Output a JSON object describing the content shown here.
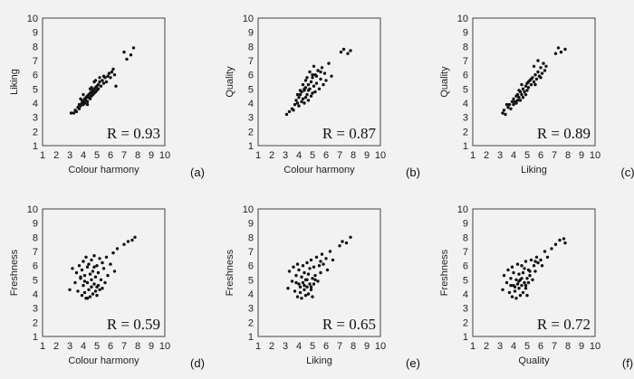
{
  "chart_data": [
    {
      "type": "scatter",
      "panel": "(a)",
      "xlabel": "Colour harmony",
      "ylabel": "Liking",
      "xlim": [
        1,
        10
      ],
      "ylim": [
        1,
        10
      ],
      "xticks": [
        "1",
        "2",
        "3",
        "4",
        "5",
        "6",
        "7",
        "8",
        "9",
        "10"
      ],
      "yticks": [
        "1",
        "2",
        "3",
        "4",
        "5",
        "6",
        "7",
        "8",
        "9",
        "10"
      ],
      "annotation": "R = 0.93",
      "points": [
        [
          3.1,
          3.3
        ],
        [
          3.3,
          3.3
        ],
        [
          3.4,
          3.5
        ],
        [
          3.5,
          3.4
        ],
        [
          3.6,
          3.7
        ],
        [
          3.7,
          3.6
        ],
        [
          3.7,
          3.9
        ],
        [
          3.8,
          3.8
        ],
        [
          3.9,
          4.0
        ],
        [
          3.9,
          4.2
        ],
        [
          4.0,
          3.9
        ],
        [
          4.0,
          4.1
        ],
        [
          4.1,
          4.3
        ],
        [
          4.1,
          4.0
        ],
        [
          4.2,
          4.4
        ],
        [
          4.2,
          4.2
        ],
        [
          4.3,
          4.5
        ],
        [
          4.3,
          4.1
        ],
        [
          4.4,
          4.6
        ],
        [
          4.4,
          4.4
        ],
        [
          4.5,
          4.7
        ],
        [
          4.5,
          4.3
        ],
        [
          4.6,
          4.8
        ],
        [
          4.6,
          4.5
        ],
        [
          4.7,
          4.9
        ],
        [
          4.7,
          4.6
        ],
        [
          4.8,
          5.0
        ],
        [
          4.8,
          4.7
        ],
        [
          4.9,
          5.1
        ],
        [
          4.9,
          4.8
        ],
        [
          5.0,
          5.2
        ],
        [
          5.0,
          4.9
        ],
        [
          5.1,
          5.3
        ],
        [
          5.1,
          5.0
        ],
        [
          5.2,
          5.5
        ],
        [
          5.3,
          5.2
        ],
        [
          5.4,
          5.6
        ],
        [
          5.5,
          5.4
        ],
        [
          5.6,
          5.8
        ],
        [
          5.7,
          5.5
        ],
        [
          5.8,
          5.9
        ],
        [
          5.9,
          6.1
        ],
        [
          6.0,
          5.8
        ],
        [
          6.1,
          6.2
        ],
        [
          6.2,
          6.4
        ],
        [
          6.3,
          6.0
        ],
        [
          6.4,
          5.2
        ],
        [
          7.0,
          7.6
        ],
        [
          7.2,
          7.1
        ],
        [
          7.5,
          7.4
        ],
        [
          7.7,
          7.9
        ],
        [
          4.0,
          4.6
        ],
        [
          4.5,
          5.0
        ],
        [
          4.8,
          5.5
        ],
        [
          5.2,
          5.8
        ],
        [
          4.3,
          3.9
        ],
        [
          3.8,
          4.3
        ],
        [
          4.6,
          5.1
        ],
        [
          5.5,
          5.9
        ],
        [
          4.9,
          5.6
        ]
      ]
    },
    {
      "type": "scatter",
      "panel": "(b)",
      "xlabel": "Colour harmony",
      "ylabel": "Quality",
      "xlim": [
        1,
        10
      ],
      "ylim": [
        1,
        10
      ],
      "xticks": [
        "1",
        "2",
        "3",
        "4",
        "5",
        "6",
        "7",
        "8",
        "9",
        "10"
      ],
      "yticks": [
        "1",
        "2",
        "3",
        "4",
        "5",
        "6",
        "7",
        "8",
        "9",
        "10"
      ],
      "annotation": "R = 0.87",
      "points": [
        [
          3.1,
          3.2
        ],
        [
          3.3,
          3.4
        ],
        [
          3.5,
          3.6
        ],
        [
          3.6,
          3.5
        ],
        [
          3.7,
          3.9
        ],
        [
          3.8,
          4.2
        ],
        [
          3.9,
          4.0
        ],
        [
          4.0,
          4.4
        ],
        [
          4.0,
          3.8
        ],
        [
          4.1,
          4.6
        ],
        [
          4.2,
          4.1
        ],
        [
          4.2,
          4.8
        ],
        [
          4.3,
          4.3
        ],
        [
          4.4,
          4.9
        ],
        [
          4.4,
          4.0
        ],
        [
          4.5,
          5.1
        ],
        [
          4.5,
          4.4
        ],
        [
          4.6,
          4.6
        ],
        [
          4.7,
          5.3
        ],
        [
          4.7,
          4.2
        ],
        [
          4.8,
          5.0
        ],
        [
          4.9,
          5.5
        ],
        [
          4.9,
          4.5
        ],
        [
          5.0,
          5.8
        ],
        [
          5.0,
          4.7
        ],
        [
          5.1,
          5.2
        ],
        [
          5.2,
          6.0
        ],
        [
          5.2,
          4.8
        ],
        [
          5.3,
          5.4
        ],
        [
          5.4,
          6.3
        ],
        [
          5.5,
          5.0
        ],
        [
          5.6,
          5.7
        ],
        [
          5.7,
          6.5
        ],
        [
          5.8,
          5.3
        ],
        [
          5.9,
          6.1
        ],
        [
          6.0,
          5.6
        ],
        [
          6.2,
          6.8
        ],
        [
          6.4,
          5.9
        ],
        [
          4.8,
          6.2
        ],
        [
          5.1,
          6.6
        ],
        [
          4.6,
          5.8
        ],
        [
          4.3,
          5.3
        ],
        [
          7.1,
          7.6
        ],
        [
          7.3,
          7.8
        ],
        [
          7.6,
          7.5
        ],
        [
          7.8,
          7.7
        ],
        [
          4.1,
          4.9
        ],
        [
          4.5,
          5.6
        ],
        [
          5.0,
          6.0
        ],
        [
          3.9,
          4.6
        ],
        [
          4.7,
          4.9
        ],
        [
          5.3,
          5.9
        ],
        [
          4.4,
          5.0
        ],
        [
          5.6,
          6.2
        ]
      ]
    },
    {
      "type": "scatter",
      "panel": "(c)",
      "xlabel": "Liking",
      "ylabel": "Quality",
      "xlim": [
        1,
        10
      ],
      "ylim": [
        1,
        10
      ],
      "xticks": [
        "1",
        "2",
        "3",
        "4",
        "5",
        "6",
        "7",
        "8",
        "9",
        "10"
      ],
      "yticks": [
        "1",
        "2",
        "3",
        "4",
        "5",
        "6",
        "7",
        "8",
        "9",
        "10"
      ],
      "annotation": "R = 0.89",
      "points": [
        [
          3.2,
          3.3
        ],
        [
          3.3,
          3.5
        ],
        [
          3.4,
          3.2
        ],
        [
          3.6,
          3.7
        ],
        [
          3.7,
          3.9
        ],
        [
          3.8,
          3.6
        ],
        [
          3.9,
          4.1
        ],
        [
          4.0,
          3.9
        ],
        [
          4.0,
          4.3
        ],
        [
          4.1,
          4.1
        ],
        [
          4.2,
          4.5
        ],
        [
          4.3,
          4.2
        ],
        [
          4.3,
          4.6
        ],
        [
          4.4,
          4.4
        ],
        [
          4.5,
          4.8
        ],
        [
          4.5,
          4.2
        ],
        [
          4.6,
          4.6
        ],
        [
          4.7,
          5.0
        ],
        [
          4.7,
          4.4
        ],
        [
          4.8,
          4.8
        ],
        [
          4.9,
          5.2
        ],
        [
          5.0,
          4.9
        ],
        [
          5.0,
          5.4
        ],
        [
          5.1,
          5.1
        ],
        [
          5.2,
          5.6
        ],
        [
          5.3,
          5.3
        ],
        [
          5.4,
          5.8
        ],
        [
          5.5,
          5.5
        ],
        [
          5.6,
          6.0
        ],
        [
          5.7,
          5.7
        ],
        [
          5.8,
          6.2
        ],
        [
          5.9,
          5.9
        ],
        [
          6.0,
          6.5
        ],
        [
          6.1,
          6.1
        ],
        [
          6.2,
          6.8
        ],
        [
          6.3,
          6.3
        ],
        [
          5.5,
          6.6
        ],
        [
          5.8,
          7.0
        ],
        [
          6.0,
          5.8
        ],
        [
          4.6,
          5.3
        ],
        [
          7.1,
          7.5
        ],
        [
          7.3,
          7.9
        ],
        [
          7.5,
          7.6
        ],
        [
          7.8,
          7.8
        ],
        [
          4.2,
          4.0
        ],
        [
          4.9,
          4.6
        ],
        [
          5.3,
          5.7
        ],
        [
          3.5,
          3.9
        ],
        [
          4.4,
          4.9
        ],
        [
          5.1,
          5.5
        ],
        [
          5.6,
          5.3
        ],
        [
          6.4,
          6.6
        ]
      ]
    },
    {
      "type": "scatter",
      "panel": "(d)",
      "xlabel": "Colour harmony",
      "ylabel": "Freshness",
      "xlim": [
        1,
        10
      ],
      "ylim": [
        1,
        10
      ],
      "xticks": [
        "1",
        "2",
        "3",
        "4",
        "5",
        "6",
        "7",
        "8",
        "9",
        "10"
      ],
      "yticks": [
        "1",
        "2",
        "3",
        "4",
        "5",
        "6",
        "7",
        "8",
        "9",
        "10"
      ],
      "annotation": "R = 0.59",
      "points": [
        [
          3.0,
          4.3
        ],
        [
          3.2,
          5.8
        ],
        [
          3.4,
          4.8
        ],
        [
          3.5,
          5.5
        ],
        [
          3.6,
          4.2
        ],
        [
          3.7,
          6.0
        ],
        [
          3.8,
          5.1
        ],
        [
          3.9,
          3.9
        ],
        [
          3.9,
          5.7
        ],
        [
          4.0,
          4.6
        ],
        [
          4.0,
          6.3
        ],
        [
          4.1,
          4.1
        ],
        [
          4.1,
          5.3
        ],
        [
          4.2,
          3.7
        ],
        [
          4.2,
          6.6
        ],
        [
          4.3,
          4.8
        ],
        [
          4.3,
          5.9
        ],
        [
          4.4,
          4.3
        ],
        [
          4.4,
          6.1
        ],
        [
          4.5,
          3.8
        ],
        [
          4.5,
          5.4
        ],
        [
          4.6,
          4.5
        ],
        [
          4.6,
          6.4
        ],
        [
          4.7,
          4.0
        ],
        [
          4.7,
          5.6
        ],
        [
          4.8,
          4.7
        ],
        [
          4.8,
          6.7
        ],
        [
          4.9,
          4.2
        ],
        [
          4.9,
          5.2
        ],
        [
          5.0,
          3.9
        ],
        [
          5.0,
          6.0
        ],
        [
          5.1,
          4.6
        ],
        [
          5.1,
          5.5
        ],
        [
          5.2,
          4.3
        ],
        [
          5.2,
          6.5
        ],
        [
          5.3,
          5.0
        ],
        [
          5.4,
          4.4
        ],
        [
          5.4,
          6.2
        ],
        [
          5.5,
          5.8
        ],
        [
          5.6,
          4.8
        ],
        [
          5.7,
          6.6
        ],
        [
          5.8,
          5.3
        ],
        [
          6.0,
          6.1
        ],
        [
          6.2,
          6.9
        ],
        [
          6.3,
          5.6
        ],
        [
          6.5,
          7.2
        ],
        [
          7.0,
          7.5
        ],
        [
          7.3,
          7.7
        ],
        [
          7.6,
          7.8
        ],
        [
          7.8,
          8.0
        ],
        [
          4.1,
          4.9
        ],
        [
          4.6,
          5.0
        ],
        [
          5.0,
          4.5
        ],
        [
          4.3,
          3.7
        ],
        [
          3.8,
          5.2
        ],
        [
          4.8,
          5.9
        ]
      ]
    },
    {
      "type": "scatter",
      "panel": "(e)",
      "xlabel": "Liking",
      "ylabel": "Freshness",
      "xlim": [
        1,
        10
      ],
      "ylim": [
        1,
        10
      ],
      "xticks": [
        "1",
        "2",
        "3",
        "4",
        "5",
        "6",
        "7",
        "8",
        "9",
        "10"
      ],
      "yticks": [
        "1",
        "2",
        "3",
        "4",
        "5",
        "6",
        "7",
        "8",
        "9",
        "10"
      ],
      "annotation": "R = 0.65",
      "points": [
        [
          3.2,
          4.4
        ],
        [
          3.3,
          5.6
        ],
        [
          3.5,
          4.9
        ],
        [
          3.6,
          5.9
        ],
        [
          3.7,
          4.2
        ],
        [
          3.8,
          5.3
        ],
        [
          3.9,
          3.8
        ],
        [
          3.9,
          6.1
        ],
        [
          4.0,
          4.7
        ],
        [
          4.0,
          5.7
        ],
        [
          4.1,
          4.1
        ],
        [
          4.2,
          5.2
        ],
        [
          4.2,
          3.7
        ],
        [
          4.3,
          4.8
        ],
        [
          4.3,
          6.0
        ],
        [
          4.4,
          4.3
        ],
        [
          4.4,
          5.5
        ],
        [
          4.5,
          3.9
        ],
        [
          4.5,
          5.0
        ],
        [
          4.6,
          4.5
        ],
        [
          4.6,
          6.2
        ],
        [
          4.7,
          4.0
        ],
        [
          4.7,
          5.4
        ],
        [
          4.8,
          4.7
        ],
        [
          4.8,
          5.8
        ],
        [
          4.9,
          4.3
        ],
        [
          4.9,
          6.4
        ],
        [
          5.0,
          5.1
        ],
        [
          5.0,
          3.8
        ],
        [
          5.1,
          4.7
        ],
        [
          5.1,
          5.9
        ],
        [
          5.2,
          5.3
        ],
        [
          5.3,
          6.6
        ],
        [
          5.4,
          4.9
        ],
        [
          5.5,
          6.0
        ],
        [
          5.6,
          5.5
        ],
        [
          5.7,
          6.8
        ],
        [
          5.8,
          6.1
        ],
        [
          6.0,
          6.5
        ],
        [
          6.1,
          5.7
        ],
        [
          6.3,
          7.0
        ],
        [
          6.5,
          6.4
        ],
        [
          7.0,
          7.4
        ],
        [
          7.2,
          7.7
        ],
        [
          7.5,
          7.6
        ],
        [
          7.8,
          8.0
        ],
        [
          4.1,
          4.5
        ],
        [
          4.6,
          5.0
        ],
        [
          4.9,
          4.5
        ],
        [
          5.2,
          5.0
        ],
        [
          4.4,
          4.6
        ],
        [
          3.8,
          4.8
        ],
        [
          5.6,
          6.3
        ]
      ]
    },
    {
      "type": "scatter",
      "panel": "(f)",
      "xlabel": "Quality",
      "ylabel": "Freshness",
      "xlim": [
        1,
        10
      ],
      "ylim": [
        1,
        10
      ],
      "xticks": [
        "1",
        "2",
        "3",
        "4",
        "5",
        "6",
        "7",
        "8",
        "9",
        "10"
      ],
      "yticks": [
        "1",
        "2",
        "3",
        "4",
        "5",
        "6",
        "7",
        "8",
        "9",
        "10"
      ],
      "annotation": "R = 0.72",
      "points": [
        [
          3.2,
          4.3
        ],
        [
          3.3,
          5.3
        ],
        [
          3.5,
          4.8
        ],
        [
          3.6,
          5.7
        ],
        [
          3.7,
          4.1
        ],
        [
          3.8,
          5.1
        ],
        [
          3.9,
          3.8
        ],
        [
          3.9,
          5.9
        ],
        [
          4.0,
          4.6
        ],
        [
          4.0,
          5.5
        ],
        [
          4.1,
          4.2
        ],
        [
          4.2,
          5.0
        ],
        [
          4.2,
          3.7
        ],
        [
          4.3,
          4.7
        ],
        [
          4.3,
          6.1
        ],
        [
          4.4,
          4.4
        ],
        [
          4.4,
          5.4
        ],
        [
          4.5,
          3.9
        ],
        [
          4.5,
          5.0
        ],
        [
          4.6,
          4.6
        ],
        [
          4.6,
          6.0
        ],
        [
          4.7,
          4.1
        ],
        [
          4.7,
          5.5
        ],
        [
          4.8,
          4.8
        ],
        [
          4.8,
          5.8
        ],
        [
          4.9,
          4.4
        ],
        [
          4.9,
          6.3
        ],
        [
          5.0,
          5.1
        ],
        [
          5.0,
          3.9
        ],
        [
          5.1,
          4.8
        ],
        [
          5.1,
          5.7
        ],
        [
          5.2,
          5.3
        ],
        [
          5.3,
          6.4
        ],
        [
          5.4,
          5.0
        ],
        [
          5.5,
          6.0
        ],
        [
          5.6,
          5.6
        ],
        [
          5.7,
          6.6
        ],
        [
          5.8,
          6.2
        ],
        [
          6.0,
          6.4
        ],
        [
          6.1,
          6.0
        ],
        [
          6.3,
          7.0
        ],
        [
          6.5,
          6.6
        ],
        [
          6.8,
          7.2
        ],
        [
          7.1,
          7.5
        ],
        [
          7.4,
          7.8
        ],
        [
          7.7,
          7.9
        ],
        [
          7.8,
          7.6
        ],
        [
          4.1,
          4.5
        ],
        [
          4.6,
          5.1
        ],
        [
          4.9,
          4.6
        ],
        [
          5.2,
          5.6
        ],
        [
          4.4,
          4.9
        ],
        [
          3.8,
          4.6
        ],
        [
          5.6,
          6.3
        ]
      ]
    }
  ]
}
